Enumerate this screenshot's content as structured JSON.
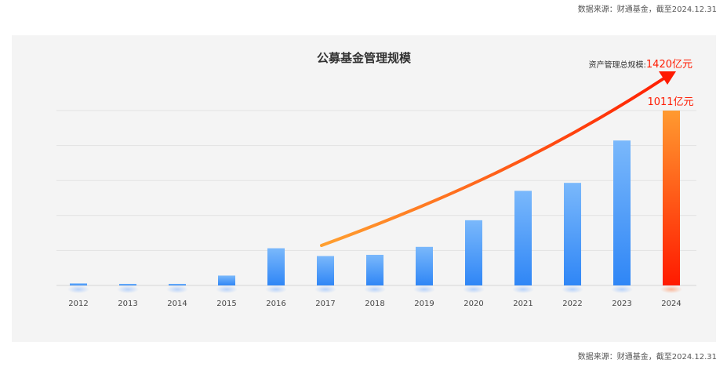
{
  "source_note": "数据来源：财通基金，截至2024.12.31",
  "chart_data": {
    "type": "bar",
    "title": "公募基金管理规模",
    "categories": [
      "2012",
      "2013",
      "2014",
      "2015",
      "2016",
      "2017",
      "2018",
      "2019",
      "2020",
      "2021",
      "2022",
      "2023",
      "2024"
    ],
    "values": [
      12,
      3,
      5,
      57,
      215,
      170,
      177,
      223,
      377,
      547,
      593,
      838,
      1011
    ],
    "unit": "亿元",
    "ylim": [
      0,
      1011
    ],
    "grid": true,
    "gridlines": 5,
    "highlight": {
      "category": "2024",
      "label": "1011亿元"
    },
    "annotation": {
      "prefix": "资产管理总规模:",
      "value": "1420亿元"
    },
    "colors": {
      "bar": "#2f86f6",
      "bar_light": "#7ab8fb",
      "highlight": "#ff1a00",
      "highlight_top": "#ff9a30",
      "arrow": "#ff2a00",
      "arrow_start": "#ffa030"
    }
  }
}
